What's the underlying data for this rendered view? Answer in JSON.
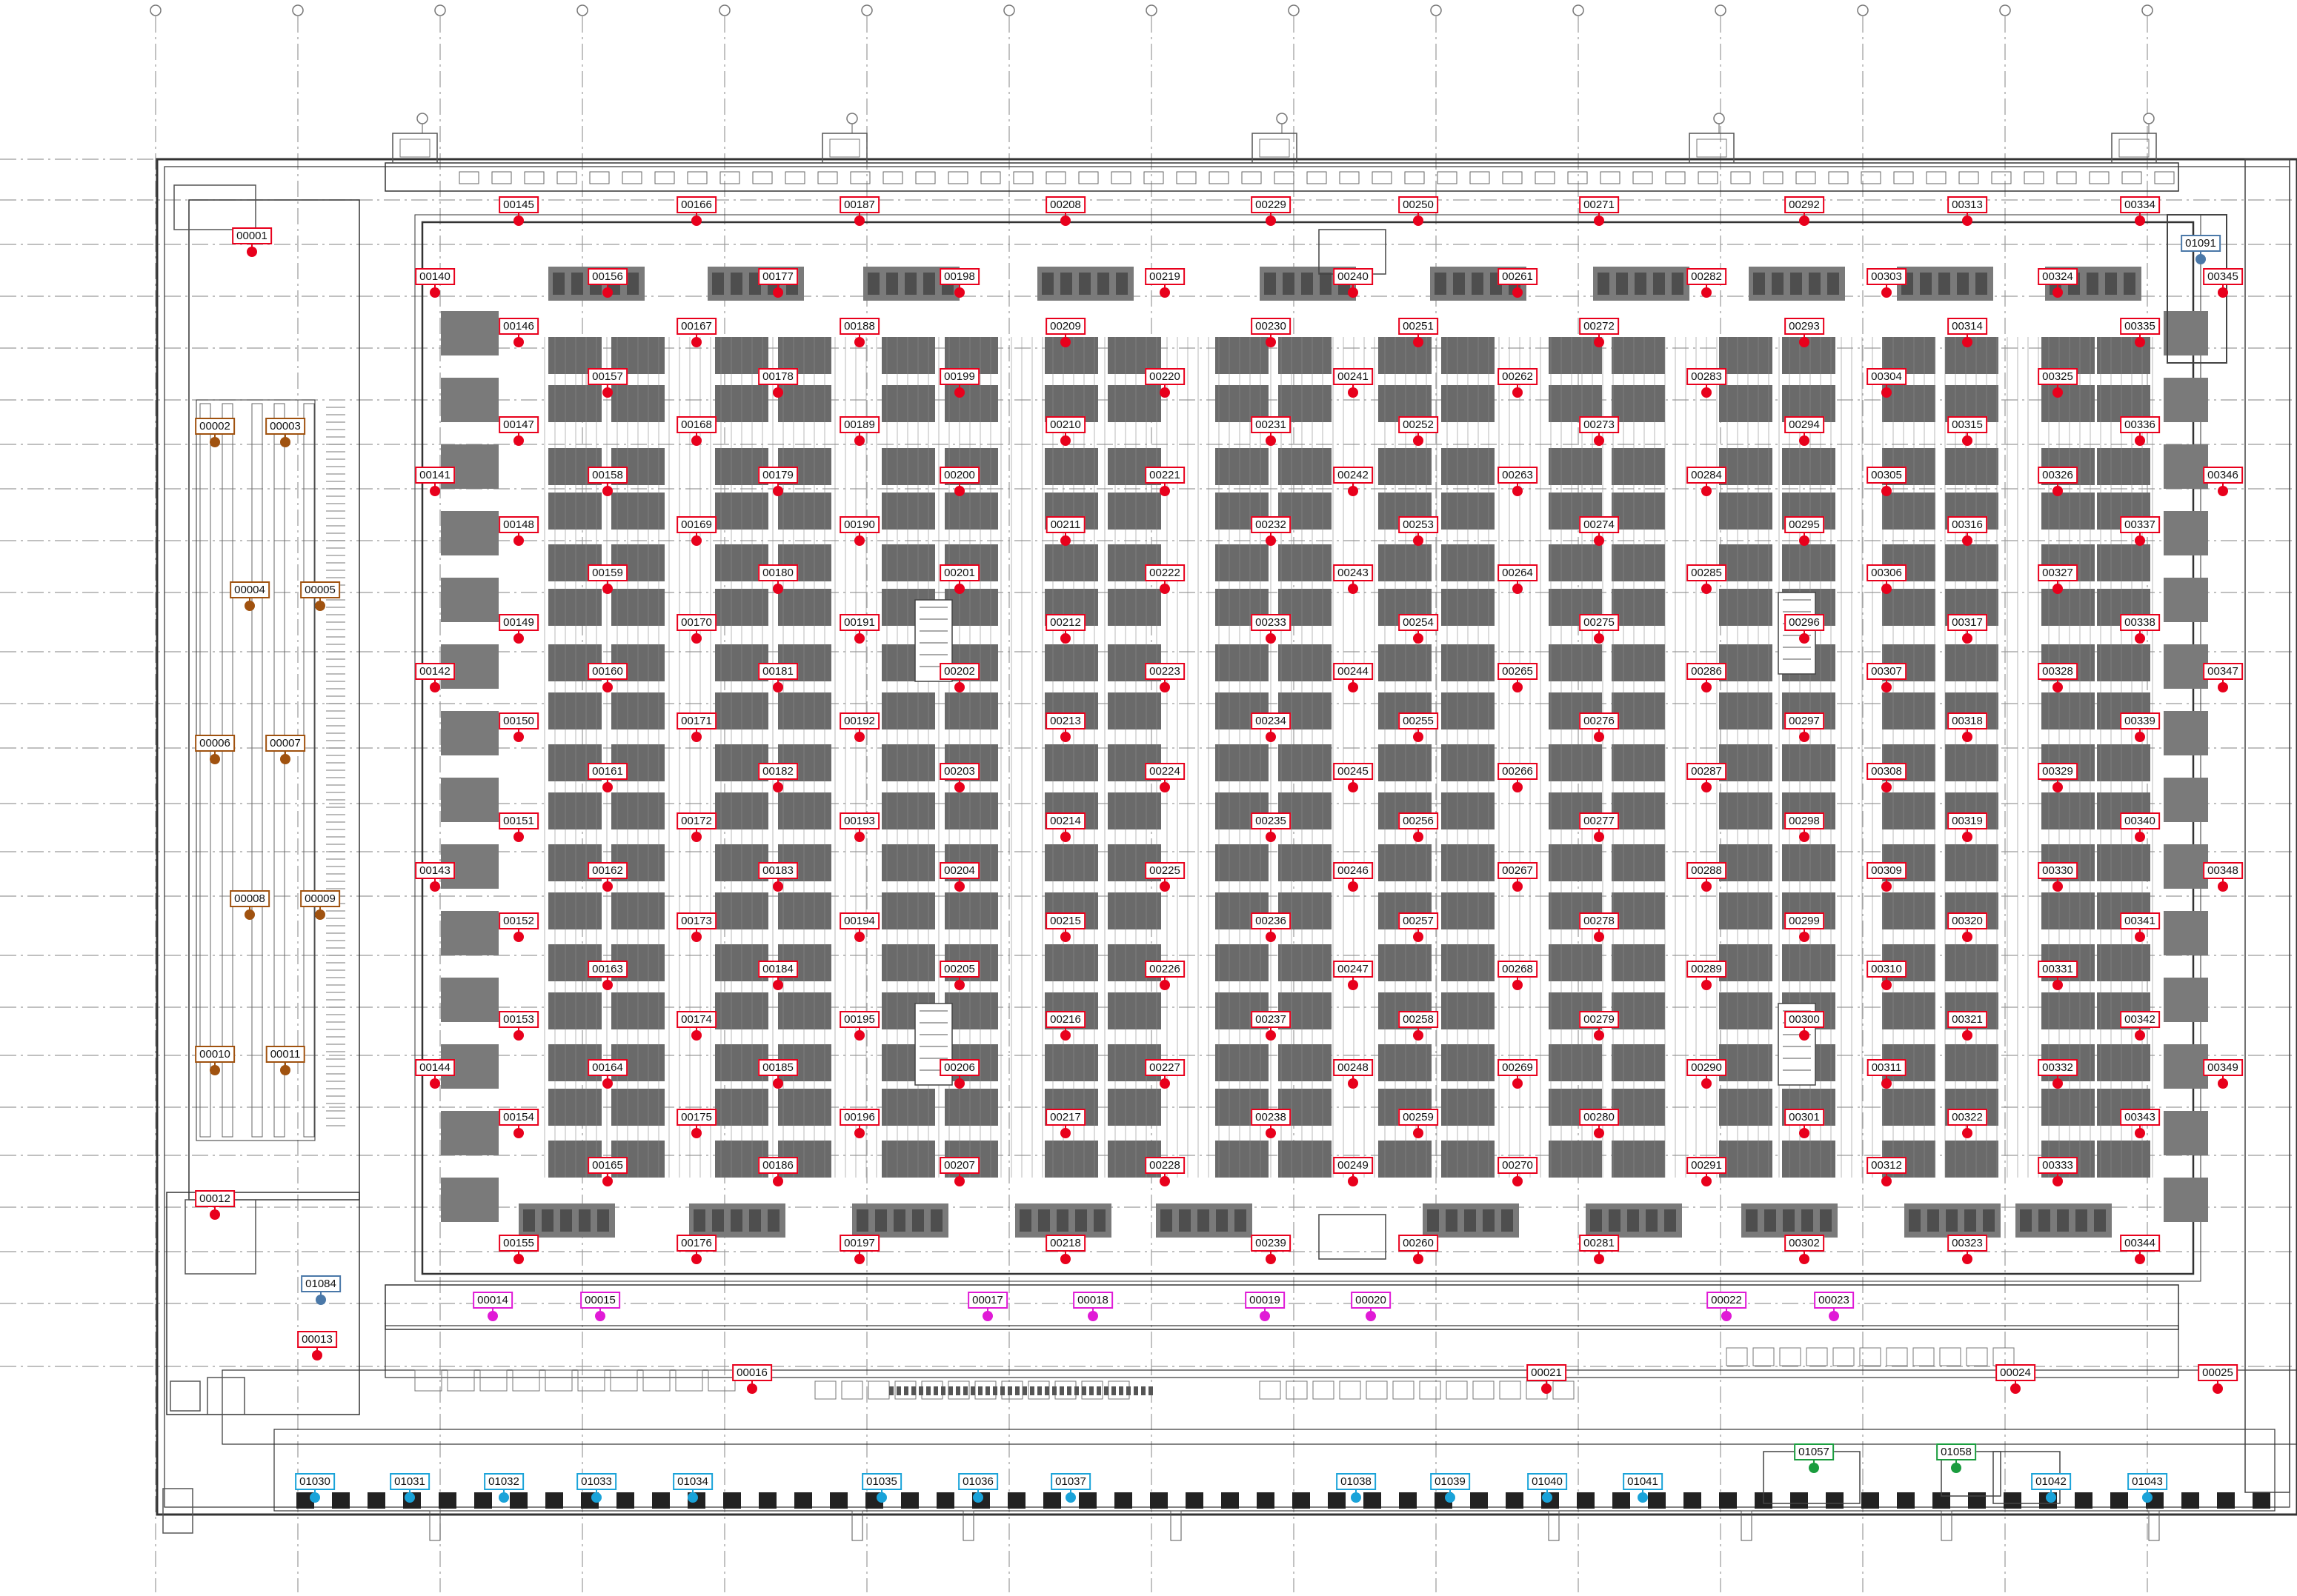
{
  "colors": {
    "red": "#e8001c",
    "brown": "#a0520f",
    "magenta": "#e01ad6",
    "cyan": "#1aa3d9",
    "green": "#1a9c3e",
    "steel": "#4a78a8",
    "wall": "#333333",
    "rack": "#6a6a6a",
    "grid": "#9a9a9a"
  },
  "markers": {
    "red": [
      "00001",
      "00012",
      "00013",
      "00016",
      "00021",
      "00024",
      "00025",
      "00140",
      "00141",
      "00142",
      "00143",
      "00144",
      "00145",
      "00146",
      "00147",
      "00148",
      "00149",
      "00150",
      "00151",
      "00152",
      "00153",
      "00154",
      "00155",
      "00156",
      "00157",
      "00158",
      "00159",
      "00160",
      "00161",
      "00162",
      "00163",
      "00164",
      "00165",
      "00166",
      "00167",
      "00168",
      "00169",
      "00170",
      "00171",
      "00172",
      "00173",
      "00174",
      "00175",
      "00176",
      "00177",
      "00178",
      "00179",
      "00180",
      "00181",
      "00182",
      "00183",
      "00184",
      "00185",
      "00186",
      "00187",
      "00188",
      "00189",
      "00190",
      "00191",
      "00192",
      "00193",
      "00194",
      "00195",
      "00196",
      "00197",
      "00198",
      "00199",
      "00200",
      "00201",
      "00202",
      "00203",
      "00204",
      "00205",
      "00206",
      "00207",
      "00208",
      "00209",
      "00210",
      "00211",
      "00212",
      "00213",
      "00214",
      "00215",
      "00216",
      "00217",
      "00218",
      "00219",
      "00220",
      "00221",
      "00222",
      "00223",
      "00224",
      "00225",
      "00226",
      "00227",
      "00228",
      "00229",
      "00230",
      "00231",
      "00232",
      "00233",
      "00234",
      "00235",
      "00236",
      "00237",
      "00238",
      "00239",
      "00240",
      "00241",
      "00242",
      "00243",
      "00244",
      "00245",
      "00246",
      "00247",
      "00248",
      "00249",
      "00250",
      "00251",
      "00252",
      "00253",
      "00254",
      "00255",
      "00256",
      "00257",
      "00258",
      "00259",
      "00260",
      "00261",
      "00262",
      "00263",
      "00264",
      "00265",
      "00266",
      "00267",
      "00268",
      "00269",
      "00270",
      "00271",
      "00272",
      "00273",
      "00274",
      "00275",
      "00276",
      "00277",
      "00278",
      "00279",
      "00280",
      "00281",
      "00282",
      "00283",
      "00284",
      "00285",
      "00286",
      "00287",
      "00288",
      "00289",
      "00290",
      "00291",
      "00292",
      "00293",
      "00294",
      "00295",
      "00296",
      "00297",
      "00298",
      "00299",
      "00300",
      "00301",
      "00302",
      "00303",
      "00304",
      "00305",
      "00306",
      "00307",
      "00308",
      "00309",
      "00310",
      "00311",
      "00312",
      "00313",
      "00314",
      "00315",
      "00316",
      "00317",
      "00318",
      "00319",
      "00320",
      "00321",
      "00322",
      "00323",
      "00324",
      "00325",
      "00326",
      "00327",
      "00328",
      "00329",
      "00330",
      "00331",
      "00332",
      "00333",
      "00334",
      "00335",
      "00336",
      "00337",
      "00338",
      "00339",
      "00340",
      "00341",
      "00342",
      "00343",
      "00344",
      "00345",
      "00346",
      "00347",
      "00348",
      "00349"
    ],
    "brown": [
      "00002",
      "00003",
      "00004",
      "00005",
      "00006",
      "00007",
      "00008",
      "00009",
      "00010",
      "00011"
    ],
    "magenta": [
      "00014",
      "00015",
      "00017",
      "00018",
      "00019",
      "00020",
      "00022",
      "00023"
    ],
    "cyan": [
      "01030",
      "01031",
      "01032",
      "01033",
      "01034",
      "01035",
      "01036",
      "01037",
      "01038",
      "01039",
      "01040",
      "01041",
      "01042",
      "01043"
    ],
    "green": [
      "01057",
      "01058"
    ],
    "steel": [
      "01084",
      "01091"
    ]
  }
}
